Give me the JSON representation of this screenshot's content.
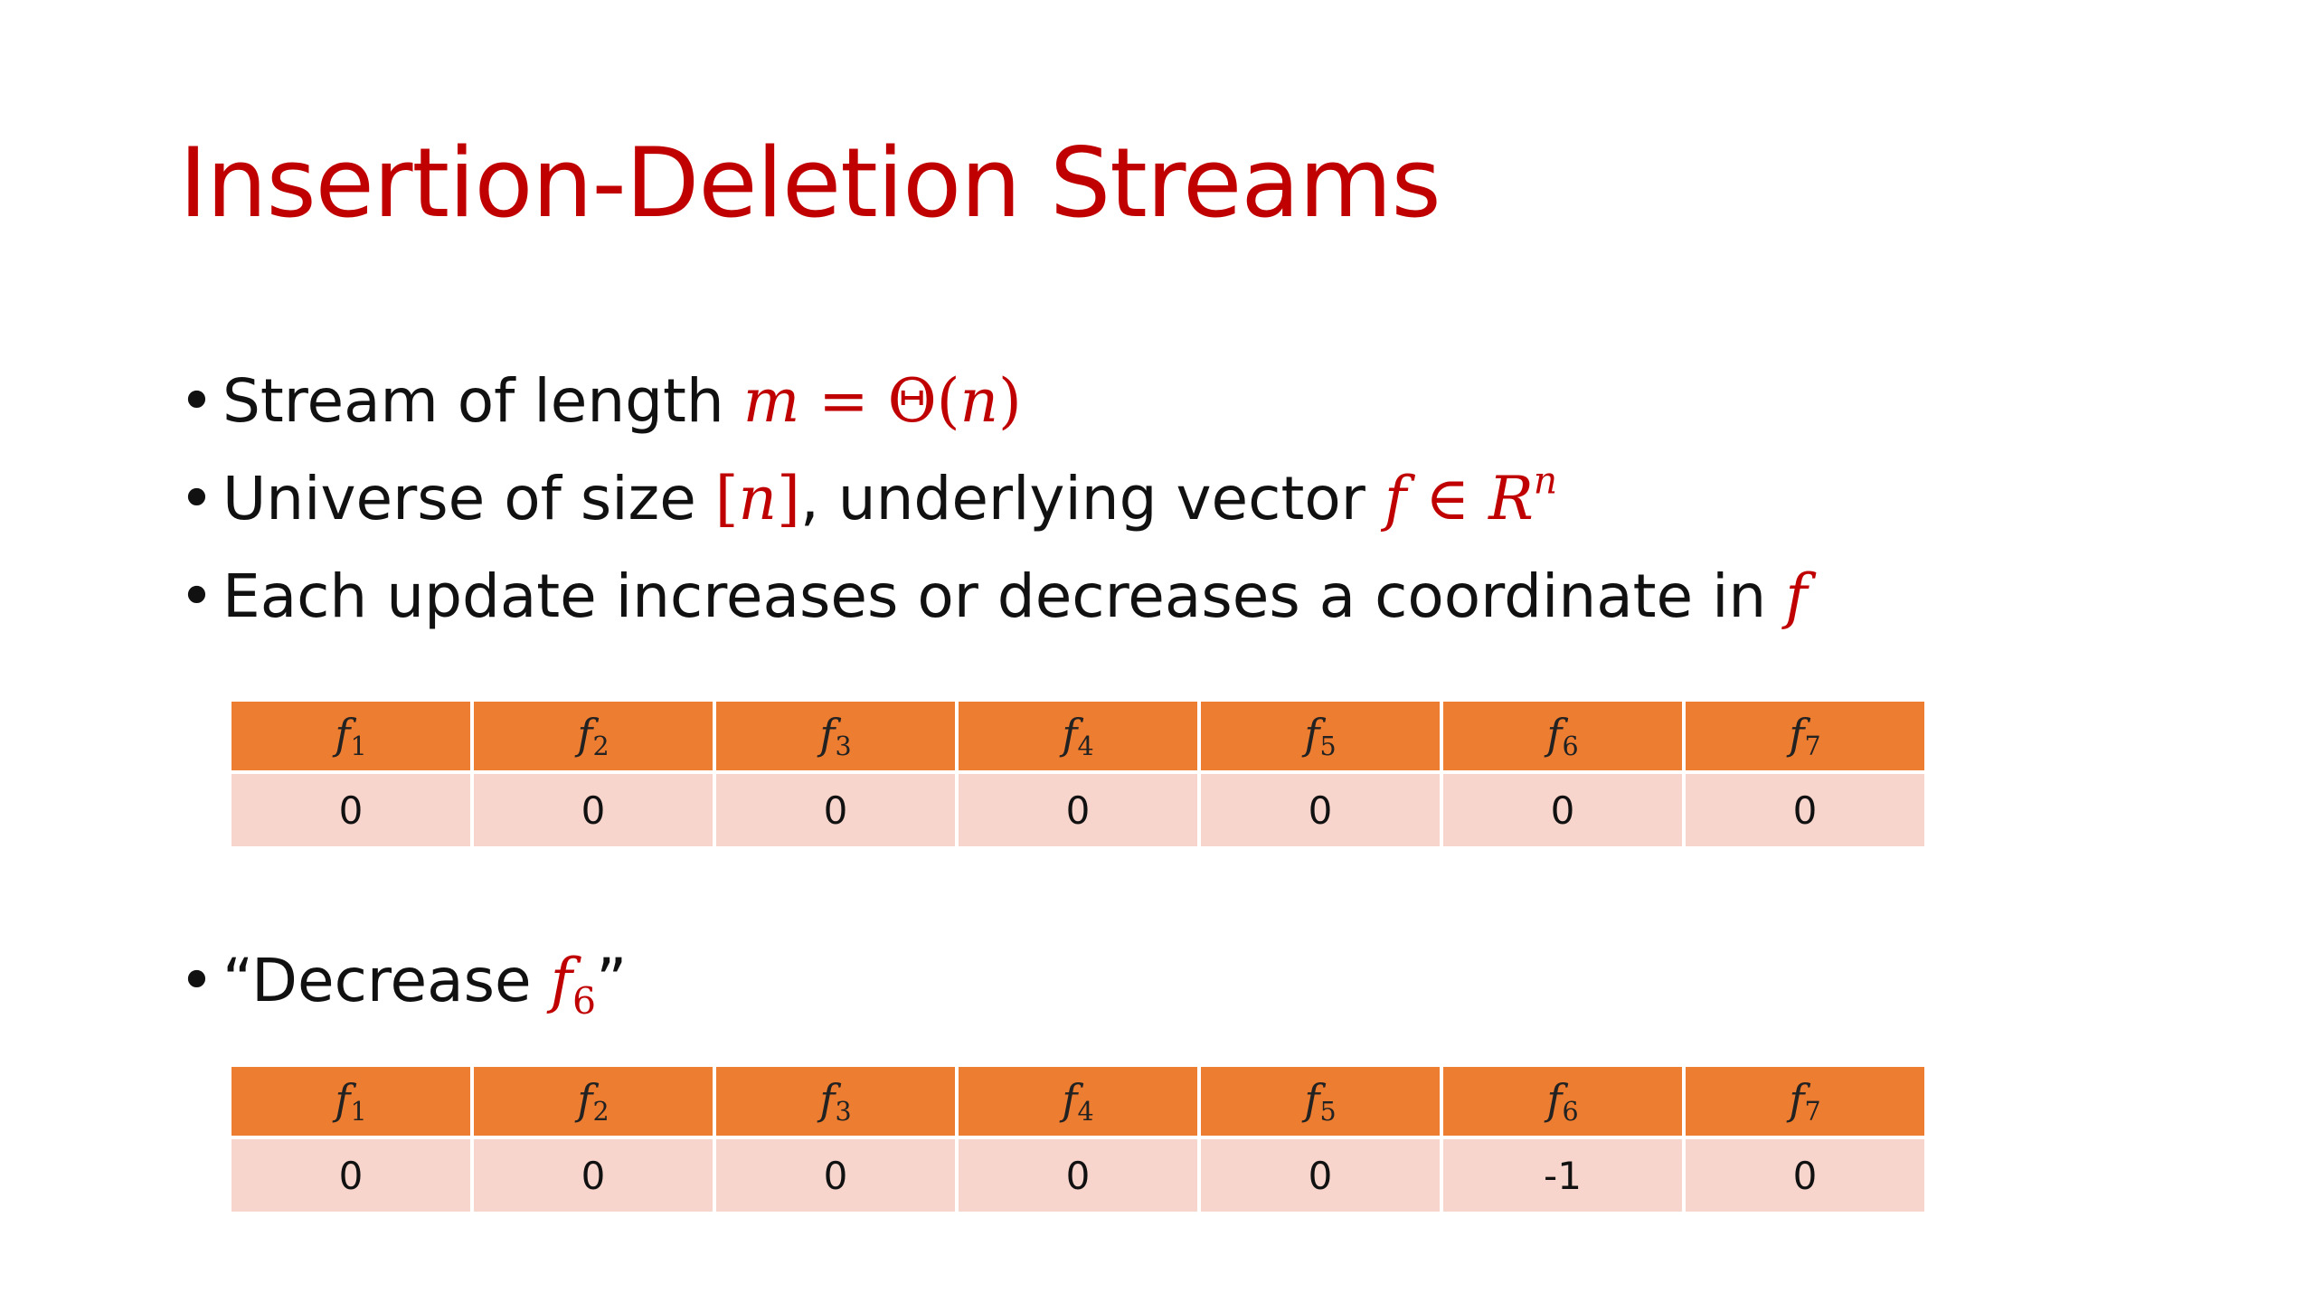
{
  "slide": {
    "title": "Insertion-Deletion Streams",
    "bullets": [
      {
        "text": "Stream of length ",
        "math_m": "m",
        "math_eq": " = Θ(",
        "math_n": "n",
        "math_close": ")"
      },
      {
        "text_a": "Universe of size ",
        "math_bracket_open": "[",
        "math_n": "n",
        "math_bracket_close": "]",
        "text_b": ", underlying vector ",
        "math_f": "f",
        "math_in": " ∈ ",
        "math_R": "R",
        "math_sup": "n"
      },
      {
        "text": "Each update increases or decreases a coordinate in ",
        "math_f": "f"
      }
    ],
    "decrease_bullet": {
      "open_quote": "“Decrease ",
      "math_f": "f",
      "math_sub": "6",
      "close_quote": "”"
    },
    "table_1": {
      "headers": [
        {
          "base": "f",
          "sub": "1"
        },
        {
          "base": "f",
          "sub": "2"
        },
        {
          "base": "f",
          "sub": "3"
        },
        {
          "base": "f",
          "sub": "4"
        },
        {
          "base": "f",
          "sub": "5"
        },
        {
          "base": "f",
          "sub": "6"
        },
        {
          "base": "f",
          "sub": "7"
        }
      ],
      "values": [
        "0",
        "0",
        "0",
        "0",
        "0",
        "0",
        "0"
      ]
    },
    "table_2": {
      "headers": [
        {
          "base": "f",
          "sub": "1"
        },
        {
          "base": "f",
          "sub": "2"
        },
        {
          "base": "f",
          "sub": "3"
        },
        {
          "base": "f",
          "sub": "4"
        },
        {
          "base": "f",
          "sub": "5"
        },
        {
          "base": "f",
          "sub": "6"
        },
        {
          "base": "f",
          "sub": "7"
        }
      ],
      "values": [
        "0",
        "0",
        "0",
        "0",
        "0",
        "-1",
        "0"
      ]
    },
    "colors": {
      "title": "#c00000",
      "math": "#c00000",
      "header_fill": "#ed7d31",
      "value_fill": "#f8d5cc",
      "text": "#111111"
    }
  }
}
